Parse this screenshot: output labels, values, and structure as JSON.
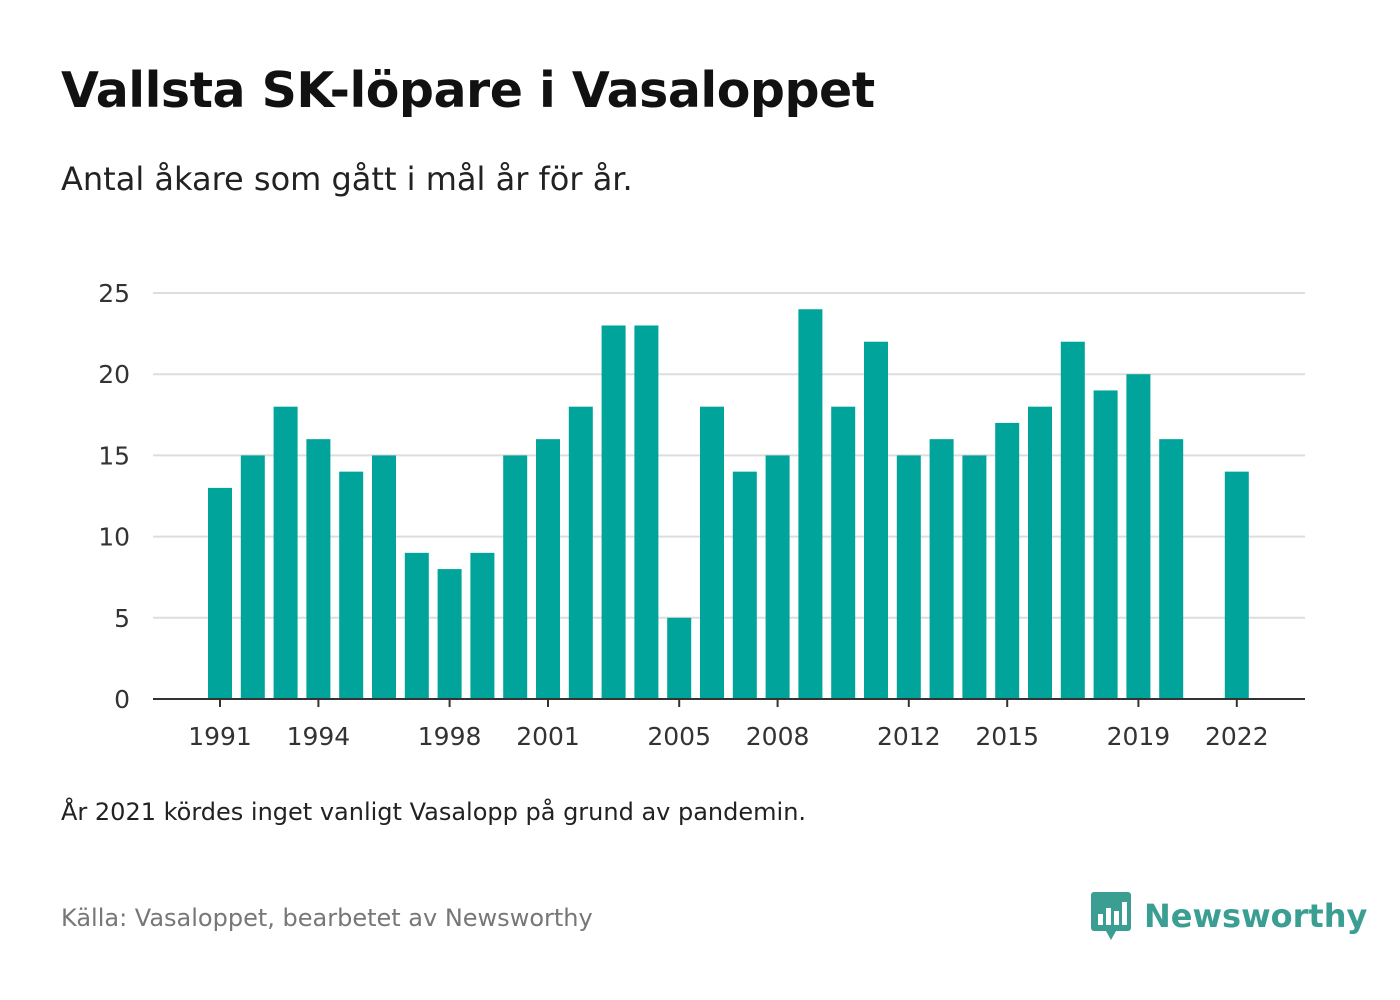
{
  "title": "Vallsta SK-löpare i Vasaloppet",
  "subtitle": "Antal åkare som gått i mål år för år.",
  "note": "År 2021 kördes inget vanligt Vasalopp på grund av pandemin.",
  "source": "Källa: Vasaloppet, bearbetet av Newsworthy",
  "brand": {
    "name": "Newsworthy",
    "color": "#3a9e93"
  },
  "chart_data": {
    "type": "bar",
    "title": "Vallsta SK-löpare i Vasaloppet",
    "subtitle": "Antal åkare som gått i mål år för år.",
    "bar_color": "#00a49a",
    "categories": [
      1991,
      1992,
      1993,
      1994,
      1995,
      1996,
      1997,
      1998,
      1999,
      2000,
      2001,
      2002,
      2003,
      2004,
      2005,
      2006,
      2007,
      2008,
      2009,
      2010,
      2011,
      2012,
      2013,
      2014,
      2015,
      2016,
      2017,
      2018,
      2019,
      2020,
      2021,
      2022
    ],
    "values": [
      13,
      15,
      18,
      16,
      14,
      15,
      9,
      8,
      9,
      15,
      16,
      18,
      23,
      23,
      5,
      18,
      14,
      15,
      24,
      18,
      22,
      15,
      16,
      15,
      17,
      18,
      22,
      19,
      20,
      16,
      null,
      14
    ],
    "x_tick_labels": [
      "1991",
      "1994",
      "1998",
      "2001",
      "2005",
      "2008",
      "2012",
      "2015",
      "2019",
      "2022"
    ],
    "y_ticks": [
      0,
      5,
      10,
      15,
      20,
      25
    ],
    "ylim": [
      0,
      25
    ],
    "xlabel": "",
    "ylabel": "",
    "grid": true,
    "legend": "none"
  }
}
